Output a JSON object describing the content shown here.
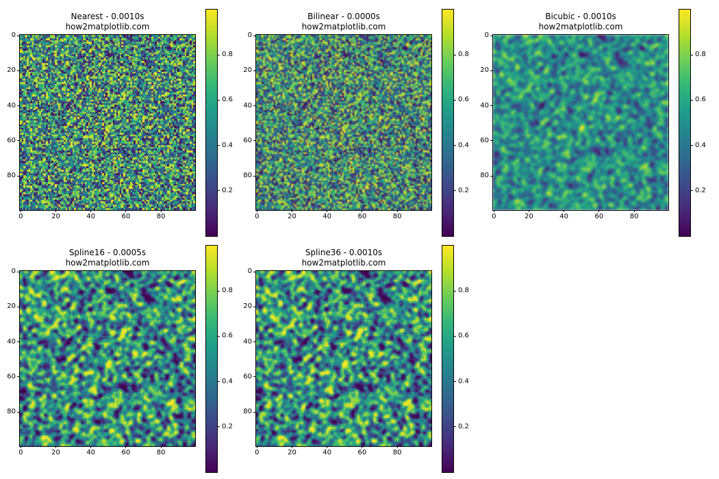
{
  "chart_data": [
    {
      "type": "heatmap",
      "title": "Nearest - 0.0010s",
      "subtitle": "how2matplotlib.com",
      "interpolation": "nearest",
      "shape": [
        100,
        100
      ],
      "colormap": "viridis",
      "xlim": [
        -0.5,
        99.5
      ],
      "ylim": [
        99.5,
        -0.5
      ],
      "xticks": [
        "0",
        "20",
        "40",
        "60",
        "80"
      ],
      "yticks": [
        "0",
        "20",
        "40",
        "60",
        "80"
      ],
      "colorbar": {
        "range": [
          0,
          1
        ],
        "ticks": [
          "0.2",
          "0.4",
          "0.6",
          "0.8"
        ]
      }
    },
    {
      "type": "heatmap",
      "title": "Bilinear - 0.0000s",
      "subtitle": "how2matplotlib.com",
      "interpolation": "bilinear",
      "shape": [
        100,
        100
      ],
      "colormap": "viridis",
      "xlim": [
        -0.5,
        99.5
      ],
      "ylim": [
        99.5,
        -0.5
      ],
      "xticks": [
        "0",
        "20",
        "40",
        "60",
        "80"
      ],
      "yticks": [
        "0",
        "20",
        "40",
        "60",
        "80"
      ],
      "colorbar": {
        "range": [
          0,
          1
        ],
        "ticks": [
          "0.2",
          "0.4",
          "0.6",
          "0.8"
        ]
      }
    },
    {
      "type": "heatmap",
      "title": "Bicubic - 0.0010s",
      "subtitle": "how2matplotlib.com",
      "interpolation": "bicubic",
      "shape": [
        100,
        100
      ],
      "colormap": "viridis",
      "xlim": [
        -0.5,
        99.5
      ],
      "ylim": [
        99.5,
        -0.5
      ],
      "xticks": [
        "0",
        "20",
        "40",
        "60",
        "80"
      ],
      "yticks": [
        "0",
        "20",
        "40",
        "60",
        "80"
      ],
      "colorbar": {
        "range": [
          0,
          1
        ],
        "ticks": [
          "0.2",
          "0.4",
          "0.6",
          "0.8"
        ]
      }
    },
    {
      "type": "heatmap",
      "title": "Spline16 - 0.0005s",
      "subtitle": "how2matplotlib.com",
      "interpolation": "spline16",
      "shape": [
        100,
        100
      ],
      "colormap": "viridis",
      "xlim": [
        -0.5,
        99.5
      ],
      "ylim": [
        99.5,
        -0.5
      ],
      "xticks": [
        "0",
        "20",
        "40",
        "60",
        "80"
      ],
      "yticks": [
        "0",
        "20",
        "40",
        "60",
        "80"
      ],
      "colorbar": {
        "range": [
          0,
          1
        ],
        "ticks": [
          "0.2",
          "0.4",
          "0.6",
          "0.8"
        ]
      }
    },
    {
      "type": "heatmap",
      "title": "Spline36 - 0.0010s",
      "subtitle": "how2matplotlib.com",
      "interpolation": "spline36",
      "shape": [
        100,
        100
      ],
      "colormap": "viridis",
      "xlim": [
        -0.5,
        99.5
      ],
      "ylim": [
        99.5,
        -0.5
      ],
      "xticks": [
        "0",
        "20",
        "40",
        "60",
        "80"
      ],
      "yticks": [
        "0",
        "20",
        "40",
        "60",
        "80"
      ],
      "colorbar": {
        "range": [
          0,
          1
        ],
        "ticks": [
          "0.2",
          "0.4",
          "0.6",
          "0.8"
        ]
      }
    }
  ]
}
